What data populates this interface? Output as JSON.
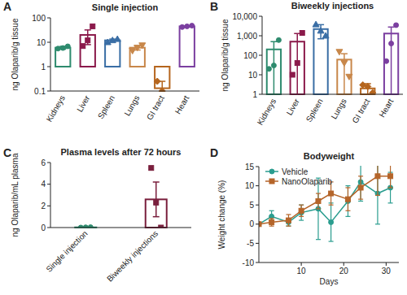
{
  "chart_data": [
    {
      "type": "bar",
      "panel_label": "A",
      "title": "Single injection",
      "y_label": "ng Olaparib/g tissue",
      "categories": [
        "Kidneys",
        "Liver",
        "Spleen",
        "Lungs",
        "GI tract",
        "Heart"
      ],
      "values": [
        6,
        20,
        12,
        6,
        0.13,
        45
      ],
      "errors": [
        0.8,
        12,
        1.5,
        1.2,
        0.12,
        2
      ],
      "points": [
        [
          5.5,
          5.8,
          6.8
        ],
        [
          7,
          12,
          45
        ],
        [
          10,
          12,
          13.5
        ],
        [
          4.5,
          6,
          7.5
        ],
        [
          0.25,
          0.1,
          0.05
        ],
        [
          42,
          45,
          48
        ]
      ],
      "colors": [
        "#2e8b6e",
        "#8b1a4b",
        "#3a6ea5",
        "#c8874a",
        "#b5651d",
        "#7b3fa0"
      ],
      "log": "y",
      "ylim": [
        0.1,
        100
      ],
      "yticks": [
        0.1,
        1,
        10,
        100
      ]
    },
    {
      "type": "bar",
      "panel_label": "B",
      "title": "Biweekly injections",
      "y_label": "ng Olaparib/g tissue",
      "categories": [
        "Kidneys",
        "Liver",
        "Spleen",
        "Lungs",
        "GI tract",
        "Heart"
      ],
      "values": [
        200,
        500,
        2200,
        60,
        2,
        1300
      ],
      "errors": [
        300,
        800,
        1500,
        60,
        1.5,
        1500
      ],
      "points": [
        [
          20,
          30,
          600
        ],
        [
          10,
          40,
          1400
        ],
        [
          3800,
          1800,
          1000
        ],
        [
          150,
          40,
          8
        ],
        [
          3,
          2.5,
          1.2
        ],
        [
          50,
          400,
          3500
        ]
      ],
      "colors": [
        "#2e8b6e",
        "#8b1a4b",
        "#3a6ea5",
        "#c8874a",
        "#b5651d",
        "#7b3fa0"
      ],
      "log": "y",
      "ylim": [
        1,
        10000
      ],
      "yticks": [
        1,
        10,
        100,
        {
          "value": 1000,
          "label": "1,000"
        },
        {
          "value": 10000,
          "label": "10,000"
        }
      ]
    },
    {
      "type": "bar",
      "panel_label": "C",
      "title": "Plasma levels after 72 hours",
      "y_label": "ng Olaparib/mL plasma",
      "categories": [
        "Single injection",
        "Biweekly injections"
      ],
      "values": [
        0.02,
        2.6
      ],
      "errors": [
        0.02,
        1.6
      ],
      "points": [
        [
          0,
          0.02,
          0.03
        ],
        [
          5.5,
          2.3,
          0
        ]
      ],
      "colors": [
        "#2e8b6e",
        "#7a1f3d"
      ],
      "ylim": [
        0,
        6
      ],
      "yticks": [
        0,
        2,
        4,
        6
      ]
    },
    {
      "type": "line",
      "panel_label": "D",
      "title": "Bodyweight",
      "x_label": "Days",
      "y_label": "Weight change (%)",
      "x": [
        0,
        3,
        7,
        10,
        14,
        17,
        21,
        24,
        28,
        31
      ],
      "series": [
        {
          "name": "Vehicle",
          "color": "#2a9d8f",
          "marker": "circle",
          "line_style": "solid",
          "values": [
            0,
            2,
            0.5,
            3,
            4,
            0.5,
            6,
            11,
            8,
            9.5
          ],
          "errors": [
            0,
            1.5,
            1,
            2,
            8,
            5,
            4,
            5,
            8,
            4
          ]
        },
        {
          "name": "NanoOlaparib",
          "color": "#b5652a",
          "marker": "square",
          "line_style": "solid",
          "values": [
            0,
            0.5,
            1,
            3.5,
            6,
            8,
            6.5,
            9.5,
            12.5,
            12.5
          ],
          "errors": [
            0,
            1,
            1.5,
            1.5,
            2,
            3,
            3,
            3,
            5,
            3
          ]
        }
      ],
      "xlim": [
        0,
        33
      ],
      "xticks": [
        10,
        20,
        30
      ],
      "ylim": [
        -10,
        15
      ],
      "yticks": [
        -10,
        -5,
        0,
        5,
        10,
        15
      ],
      "legend": "top-left"
    }
  ]
}
